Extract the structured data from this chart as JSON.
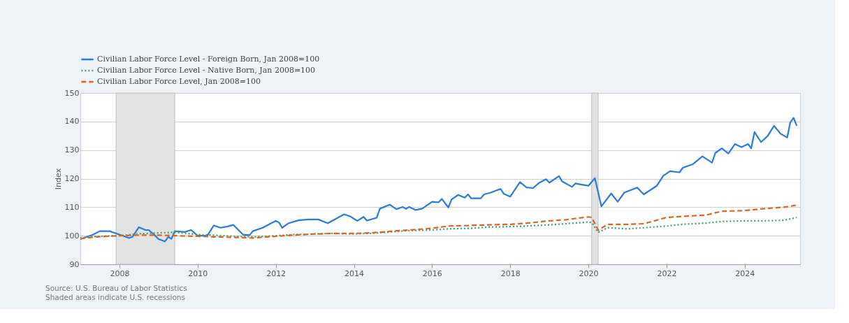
{
  "chart_data": {
    "type": "line",
    "ylabel": "Index",
    "ylim": [
      90,
      150
    ],
    "yticks": [
      90,
      100,
      110,
      120,
      130,
      140,
      150
    ],
    "xlim": [
      "2007-01",
      "2025-06"
    ],
    "xticks": [
      {
        "value": "2008-01",
        "label": "2008"
      },
      {
        "value": "2010-01",
        "label": "2010"
      },
      {
        "value": "2012-01",
        "label": "2012"
      },
      {
        "value": "2014-01",
        "label": "2014"
      },
      {
        "value": "2016-01",
        "label": "2016"
      },
      {
        "value": "2018-01",
        "label": "2018"
      },
      {
        "value": "2020-01",
        "label": "2020"
      },
      {
        "value": "2022-01",
        "label": "2022"
      },
      {
        "value": "2024-01",
        "label": "2024"
      }
    ],
    "grid": "y",
    "legend": "top left",
    "marker": "none",
    "bands": [
      {
        "axis": "x",
        "from": "2007-12",
        "to": "2009-06",
        "color": "#e3e3e3"
      },
      {
        "axis": "x",
        "from": "2020-02",
        "to": "2020-04",
        "color": "#e3e3e3"
      }
    ],
    "series": [
      {
        "name": "Civilian Labor Force Level - Foreign Born, Jan 2008=100",
        "color": "#2a7ad8",
        "line_style": "solid",
        "x": [
          "2007-01",
          "2007-05",
          "2007-07",
          "2007-10",
          "2008-01",
          "2008-04",
          "2008-05",
          "2008-07",
          "2008-09",
          "2008-10",
          "2008-12",
          "2009-01",
          "2009-03",
          "2009-04",
          "2009-05",
          "2009-06",
          "2009-09",
          "2009-11",
          "2010-01",
          "2010-04",
          "2010-06",
          "2010-08",
          "2010-10",
          "2010-12",
          "2011-03",
          "2011-05",
          "2011-06",
          "2011-09",
          "2011-11",
          "2012-01",
          "2012-02",
          "2012-03",
          "2012-05",
          "2012-08",
          "2012-11",
          "2013-02",
          "2013-05",
          "2013-10",
          "2013-12",
          "2014-02",
          "2014-04",
          "2014-05",
          "2014-08",
          "2014-09",
          "2014-12",
          "2015-02",
          "2015-04",
          "2015-05",
          "2015-06",
          "2015-08",
          "2015-10",
          "2016-01",
          "2016-03",
          "2016-04",
          "2016-06",
          "2016-07",
          "2016-09",
          "2016-11",
          "2016-12",
          "2017-01",
          "2017-04",
          "2017-05",
          "2017-07",
          "2017-10",
          "2017-11",
          "2018-01",
          "2018-04",
          "2018-06",
          "2018-08",
          "2018-10",
          "2018-12",
          "2019-01",
          "2019-04",
          "2019-05",
          "2019-08",
          "2019-09",
          "2019-11",
          "2020-01",
          "2020-03",
          "2020-05",
          "2020-08",
          "2020-10",
          "2020-12",
          "2021-04",
          "2021-06",
          "2021-10",
          "2021-12",
          "2022-02",
          "2022-05",
          "2022-06",
          "2022-09",
          "2022-12",
          "2023-03",
          "2023-04",
          "2023-06",
          "2023-08",
          "2023-10",
          "2023-12",
          "2024-02",
          "2024-03",
          "2024-04",
          "2024-06",
          "2024-08",
          "2024-10",
          "2024-12",
          "2025-02",
          "2025-03",
          "2025-04",
          "2025-05"
        ],
        "values": [
          98.8,
          100.4,
          101.6,
          101.6,
          100.4,
          99.2,
          99.6,
          103,
          102,
          102,
          100,
          98.8,
          98,
          99.6,
          98.9,
          101.6,
          101.3,
          102,
          100,
          100,
          103.6,
          102.8,
          103.2,
          103.8,
          100.4,
          100.2,
          101.6,
          102.8,
          104,
          105.2,
          104.6,
          102.8,
          104.4,
          105.4,
          105.7,
          105.7,
          104.4,
          107.5,
          106.7,
          105.2,
          106.6,
          105.3,
          106.3,
          109.5,
          110.9,
          109.3,
          110.1,
          109.4,
          110.1,
          109,
          109.5,
          111.9,
          111.7,
          112.9,
          109.9,
          112.7,
          114.3,
          113.3,
          114.5,
          113.1,
          113.1,
          114.5,
          115.1,
          116.4,
          114.7,
          113.7,
          118.8,
          116.9,
          116.7,
          118.6,
          119.8,
          118.6,
          120.9,
          119,
          117.1,
          118.3,
          117.9,
          117.5,
          120.2,
          110.3,
          114.8,
          111.9,
          115.1,
          116.9,
          114.5,
          117.5,
          121,
          122.6,
          122.2,
          123.8,
          125,
          127.8,
          125.6,
          129,
          130.6,
          128.8,
          132.1,
          131,
          132.1,
          130.6,
          136.3,
          132.8,
          134.9,
          138.5,
          135.7,
          134.4,
          139.7,
          141.3,
          138.5
        ]
      },
      {
        "name": "Civilian Labor Force Level - Native Born, Jan 2008=100",
        "color": "#3f9c6c",
        "line_style": "dotted",
        "x": [
          "2007-01",
          "2007-06",
          "2008-01",
          "2008-06",
          "2009-01",
          "2009-06",
          "2010-01",
          "2010-06",
          "2011-01",
          "2011-06",
          "2012-01",
          "2012-06",
          "2013-01",
          "2013-06",
          "2014-01",
          "2014-06",
          "2015-01",
          "2015-06",
          "2016-01",
          "2016-06",
          "2017-01",
          "2017-06",
          "2018-01",
          "2018-06",
          "2019-01",
          "2019-06",
          "2020-01",
          "2020-02",
          "2020-04",
          "2020-07",
          "2021-01",
          "2021-06",
          "2022-01",
          "2022-06",
          "2023-01",
          "2023-06",
          "2024-01",
          "2024-06",
          "2025-01",
          "2025-05"
        ],
        "values": [
          99.2,
          99.8,
          100,
          100.6,
          101,
          101.2,
          100.4,
          100.2,
          99.8,
          99.6,
          100,
          100.4,
          100.6,
          100.8,
          100.6,
          100.8,
          101.4,
          101.8,
          102,
          102.4,
          102.6,
          103,
          103.2,
          103.4,
          103.8,
          104.2,
          104.8,
          104.6,
          101.2,
          102.8,
          102.4,
          102.8,
          103.4,
          104,
          104.4,
          105,
          105.2,
          105.2,
          105.4,
          106.4
        ]
      },
      {
        "name": "Civilian Labor Force Level, Jan 2008=100",
        "color": "#d9651e",
        "line_style": "dashed",
        "x": [
          "2007-01",
          "2007-06",
          "2008-01",
          "2008-06",
          "2009-01",
          "2009-06",
          "2010-01",
          "2010-06",
          "2011-01",
          "2011-06",
          "2012-01",
          "2012-06",
          "2013-01",
          "2013-06",
          "2014-01",
          "2014-06",
          "2015-01",
          "2015-06",
          "2016-01",
          "2016-06",
          "2017-01",
          "2017-06",
          "2018-01",
          "2018-06",
          "2019-01",
          "2019-06",
          "2020-01",
          "2020-02",
          "2020-04",
          "2020-07",
          "2021-01",
          "2021-06",
          "2022-01",
          "2022-06",
          "2023-01",
          "2023-06",
          "2024-01",
          "2024-06",
          "2025-01",
          "2025-05"
        ],
        "values": [
          99,
          99.6,
          100,
          100.2,
          100.2,
          100,
          99.8,
          99.6,
          99.4,
          99.2,
          99.8,
          100.2,
          100.6,
          100.8,
          100.8,
          101,
          101.6,
          102,
          102.6,
          103.4,
          103.6,
          103.8,
          104,
          104.4,
          105.2,
          105.6,
          106.6,
          106.4,
          102,
          104,
          104,
          104.2,
          106.4,
          106.8,
          107.2,
          108.6,
          108.8,
          109.4,
          110,
          110.7
        ]
      }
    ],
    "annotations": [
      "Source: U.S. Bureau of Labor Statistics",
      "Shaded areas indicate U.S. recessions"
    ]
  }
}
